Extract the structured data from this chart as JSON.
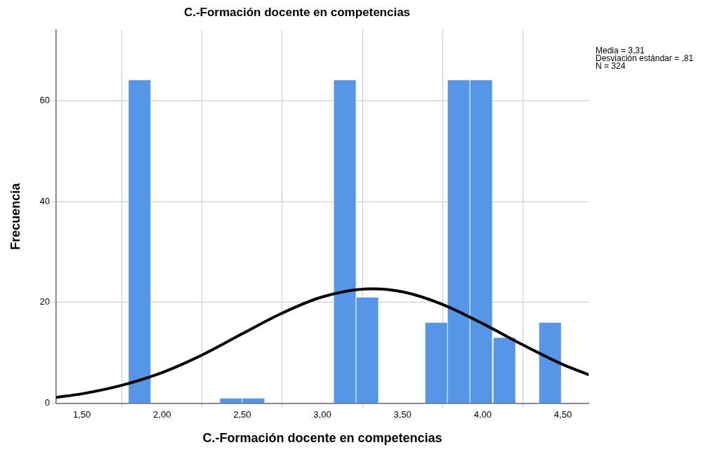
{
  "chart_data": {
    "type": "histogram",
    "title": "C.-Formación docente en competencias",
    "xlabel": "C.-Formación docente en competencias",
    "ylabel": "Frecuencia",
    "bins": [
      1.79,
      1.93,
      2.07,
      2.22,
      2.36,
      2.5,
      2.64,
      2.78,
      2.93,
      3.07,
      3.21,
      3.35,
      3.5,
      3.64,
      3.78,
      3.92,
      4.06,
      4.21,
      4.35,
      4.49
    ],
    "values": [
      64,
      0,
      0,
      0,
      1,
      1,
      0,
      0,
      0,
      64,
      21,
      0,
      0,
      16,
      64,
      64,
      13,
      0,
      16
    ],
    "color": "#5596e6",
    "series": [
      {
        "type": "line",
        "color": "#000000",
        "x": [
          1.34,
          1.5,
          1.75,
          2.0,
          2.25,
          2.5,
          2.75,
          3.0,
          3.31,
          3.5,
          3.75,
          4.0,
          4.25,
          4.5,
          4.66
        ],
        "values": [
          1.2,
          1.9,
          3.6,
          6.1,
          9.6,
          13.8,
          17.9,
          21.1,
          22.7,
          22.1,
          19.6,
          15.8,
          11.6,
          7.7,
          5.7
        ]
      }
    ],
    "xlim": [
      1.34,
      4.66
    ],
    "ylim": [
      0,
      74
    ],
    "xticks": [
      {
        "value": 1.5,
        "label": "1,50"
      },
      {
        "value": 2.0,
        "label": "2,00"
      },
      {
        "value": 2.5,
        "label": "2,50"
      },
      {
        "value": 3.0,
        "label": "3,00"
      },
      {
        "value": 3.5,
        "label": "3,50"
      },
      {
        "value": 4.0,
        "label": "4,00"
      },
      {
        "value": 4.5,
        "label": "4,50"
      }
    ],
    "yticks": [
      0,
      20,
      40,
      60
    ],
    "grid": true,
    "legend": false,
    "marker": "none",
    "line_style": "solid",
    "annotations": [
      "Media = 3,31",
      "Desviación estándar = ,81",
      "N = 324"
    ]
  }
}
